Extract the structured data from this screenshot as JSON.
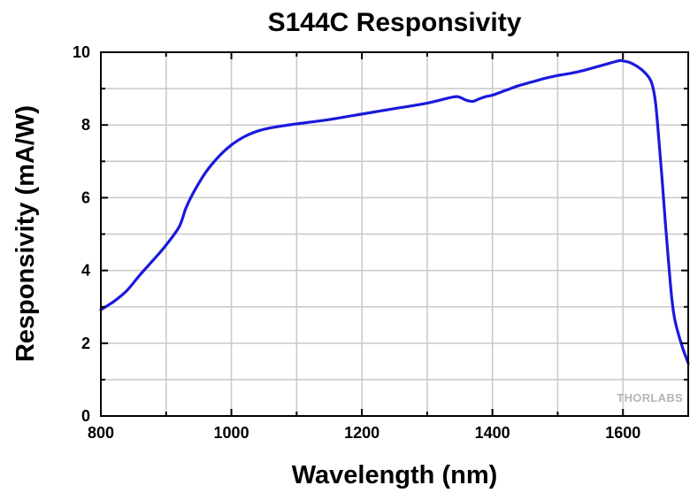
{
  "chart_data": {
    "type": "line",
    "title": "S144C Responsivity",
    "xlabel": "Wavelength (nm)",
    "ylabel": "Responsivity (mA/W)",
    "xlim": [
      800,
      1700
    ],
    "ylim": [
      0,
      10
    ],
    "x_ticks": [
      800,
      1000,
      1200,
      1400,
      1600
    ],
    "y_ticks": [
      0,
      2,
      4,
      6,
      8,
      10
    ],
    "x_grid_step": 100,
    "y_grid_step": 1,
    "grid": true,
    "watermark": "THORLABS",
    "series": [
      {
        "name": "S144C",
        "color": "#1a1adc",
        "x": [
          800,
          820,
          840,
          860,
          880,
          900,
          920,
          930,
          940,
          960,
          980,
          1000,
          1020,
          1040,
          1060,
          1080,
          1100,
          1150,
          1200,
          1250,
          1300,
          1340,
          1350,
          1360,
          1370,
          1380,
          1390,
          1400,
          1420,
          1440,
          1460,
          1480,
          1500,
          1520,
          1540,
          1560,
          1580,
          1595,
          1600,
          1610,
          1620,
          1630,
          1640,
          1645,
          1650,
          1655,
          1660,
          1665,
          1670,
          1675,
          1680,
          1690,
          1700
        ],
        "y": [
          2.92,
          3.15,
          3.45,
          3.88,
          4.28,
          4.7,
          5.2,
          5.7,
          6.08,
          6.68,
          7.12,
          7.45,
          7.68,
          7.83,
          7.92,
          7.98,
          8.03,
          8.15,
          8.3,
          8.45,
          8.6,
          8.77,
          8.76,
          8.68,
          8.65,
          8.72,
          8.78,
          8.82,
          8.95,
          9.08,
          9.18,
          9.28,
          9.36,
          9.42,
          9.5,
          9.6,
          9.7,
          9.77,
          9.76,
          9.72,
          9.63,
          9.5,
          9.3,
          9.1,
          8.6,
          7.6,
          6.5,
          5.3,
          4.2,
          3.2,
          2.6,
          1.95,
          1.45
        ]
      }
    ]
  }
}
